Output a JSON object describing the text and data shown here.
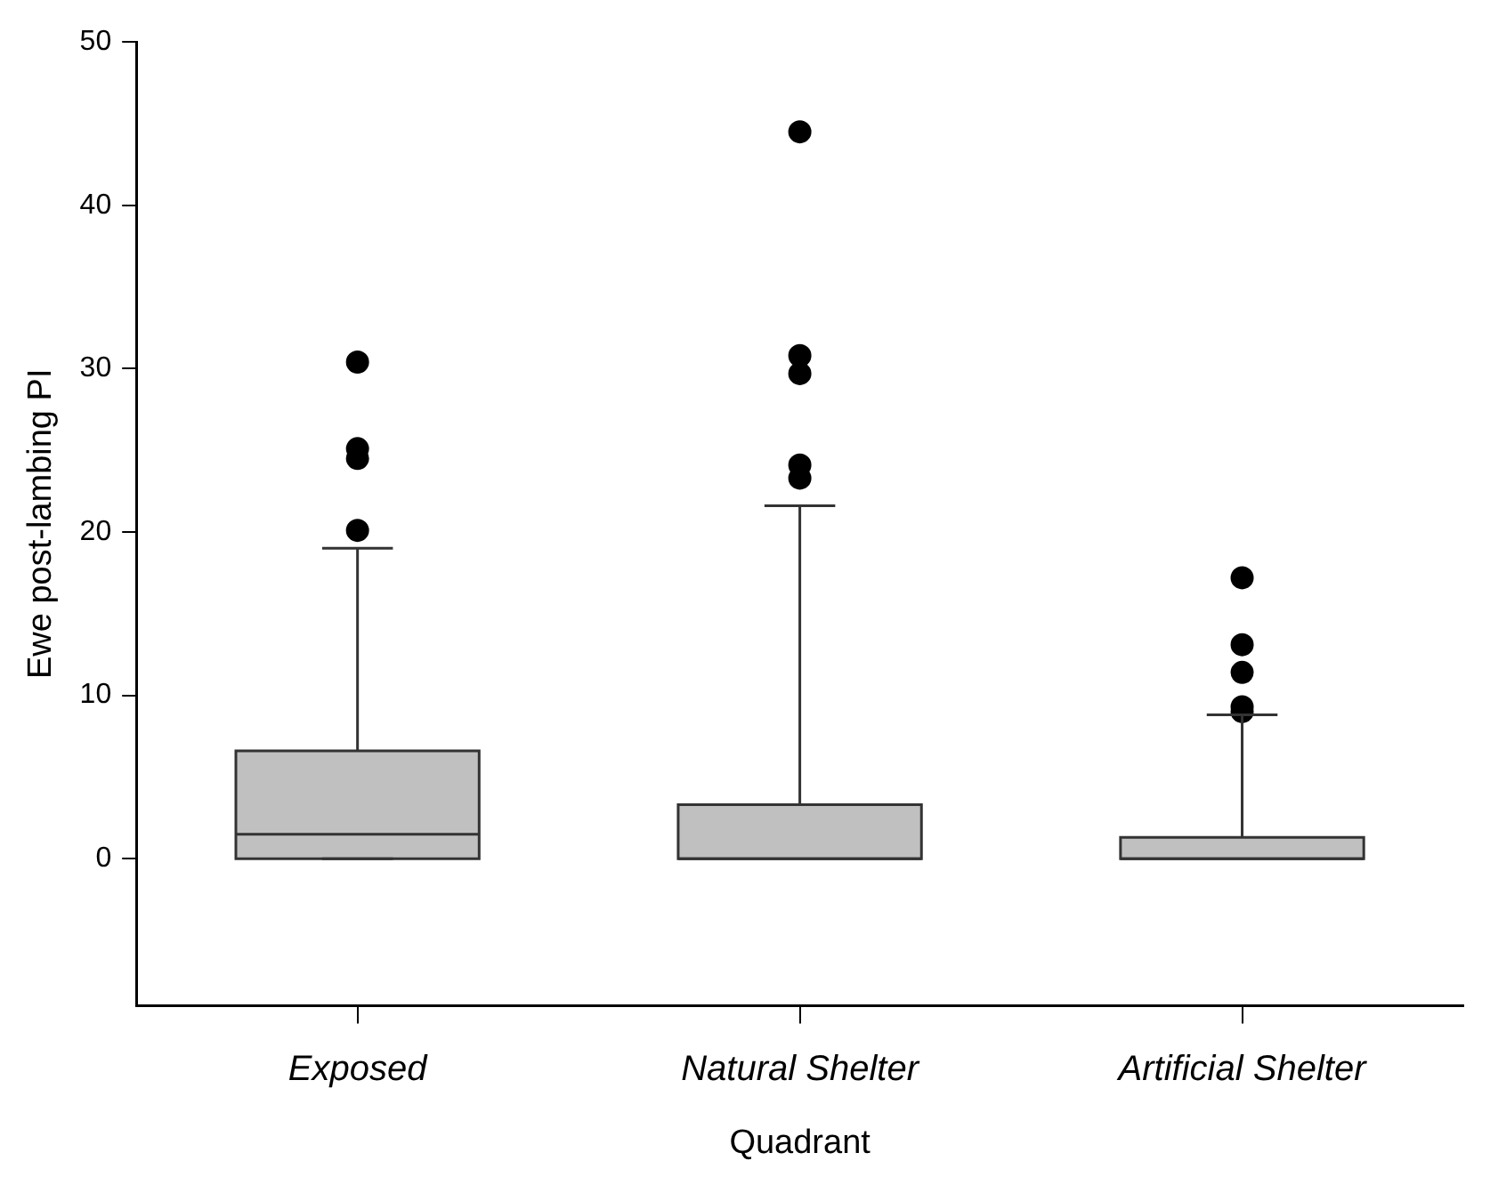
{
  "chart_data": {
    "type": "box",
    "xlabel": "Quadrant",
    "ylabel": "Ewe post-lambing PI",
    "categories": [
      "Exposed",
      "Natural Shelter",
      "Artificial Shelter"
    ],
    "boxes": [
      {
        "low": 0,
        "q1": 0,
        "median": 1.5,
        "q3": 6.6,
        "high": 19.0,
        "outliers": [
          20.1,
          24.5,
          25.1,
          30.4
        ]
      },
      {
        "low": 0,
        "q1": 0,
        "median": 0,
        "q3": 3.3,
        "high": 21.6,
        "outliers": [
          23.3,
          24.1,
          29.7,
          30.8,
          44.5
        ]
      },
      {
        "low": 0,
        "q1": 0,
        "median": 0,
        "q3": 1.3,
        "high": 8.8,
        "outliers": [
          9.0,
          9.3,
          11.4,
          13.1,
          17.2
        ]
      }
    ],
    "color": "#c0c0c0",
    "marker": "circle",
    "ylim": [
      -9,
      50
    ],
    "yticks": [
      0,
      10,
      20,
      30,
      40,
      50
    ],
    "grid": false
  }
}
